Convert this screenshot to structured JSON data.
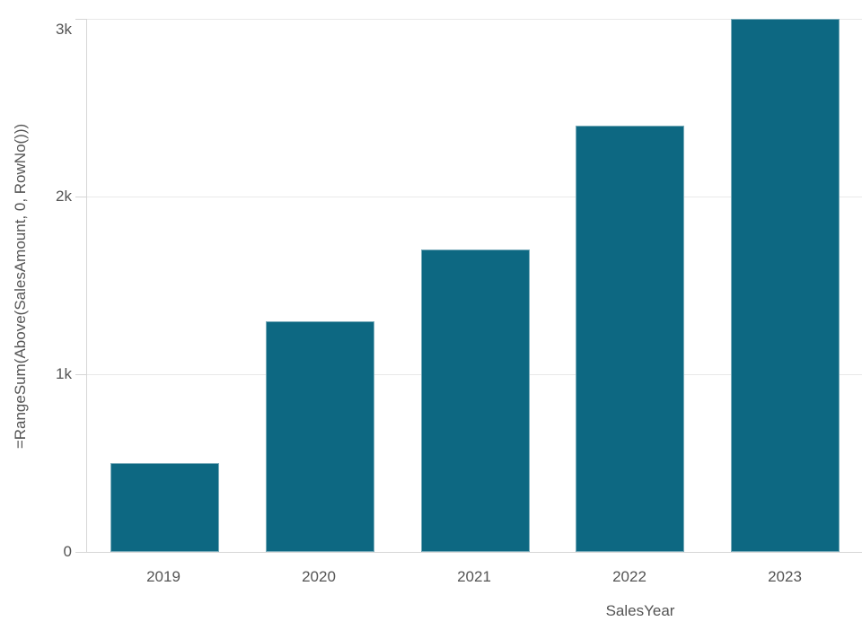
{
  "chart_data": {
    "type": "bar",
    "categories": [
      "2019",
      "2020",
      "2021",
      "2022",
      "2023"
    ],
    "values": [
      500,
      1300,
      1700,
      2400,
      3000
    ],
    "xlabel": "SalesYear",
    "ylabel": "=RangeSum(Above(SalesAmount, 0, RowNo()))",
    "ylim": [
      0,
      3000
    ],
    "yticks": [
      {
        "label": "0",
        "value": 0
      },
      {
        "label": "1k",
        "value": 1000
      },
      {
        "label": "2k",
        "value": 2000
      },
      {
        "label": "3k",
        "value": 3000
      }
    ],
    "grid": "horizontal",
    "legend_position": "none",
    "colors": {
      "bar": "#0d6882",
      "bar_edge": "rgba(255,255,255,0.45)",
      "gridline": "#e9e9e9",
      "axis_line": "#d6d6d6",
      "text": "#545454"
    }
  }
}
